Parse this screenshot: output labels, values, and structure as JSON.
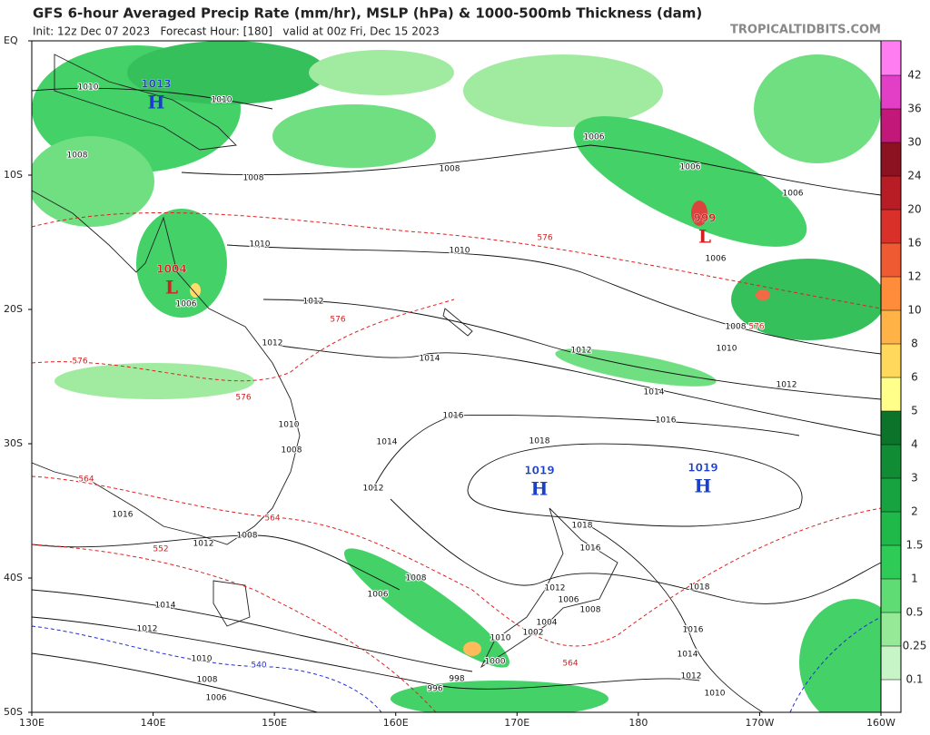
{
  "header": {
    "title": "GFS 6-hour Averaged Precip Rate (mm/hr), MSLP (hPa) & 1000-500mb Thickness (dam)",
    "subtitle": "Init: 12z Dec 07 2023   Forecast Hour: [180]   valid at 00z Fri, Dec 15 2023",
    "site": "TROPICALTIDBITS.COM"
  },
  "axes": {
    "lat_labels": [
      "EQ",
      "10S",
      "20S",
      "30S",
      "40S",
      "50S"
    ],
    "lon_labels": [
      "130E",
      "140E",
      "150E",
      "160E",
      "170E",
      "180",
      "170W",
      "160W"
    ]
  },
  "colorbar": {
    "ticks": [
      0.1,
      0.25,
      0.5,
      1,
      1.5,
      2,
      3,
      4,
      5,
      6,
      8,
      10,
      12,
      16,
      20,
      24,
      30,
      36,
      42
    ],
    "colors": [
      "#ffffff",
      "#c8f5c8",
      "#96e996",
      "#5fdc73",
      "#2ecc57",
      "#1fb94a",
      "#17a33f",
      "#108c35",
      "#0b742a",
      "#ffff8a",
      "#ffd85c",
      "#ffb347",
      "#ff8c3a",
      "#f05a32",
      "#d9302a",
      "#b81c25",
      "#8c1222",
      "#c2187a",
      "#e23fc6",
      "#ff7df0"
    ]
  },
  "pressure_centers": [
    {
      "value": 1013,
      "symbol": "H"
    },
    {
      "value": 999,
      "symbol": "L"
    },
    {
      "value": 1004,
      "symbol": "L"
    },
    {
      "value": 1019,
      "symbol": "H"
    },
    {
      "value": 1019,
      "symbol": "H"
    }
  ],
  "isobar_labels": [
    1010,
    1010,
    1008,
    1008,
    1008,
    1006,
    1006,
    1006,
    1010,
    1010,
    1006,
    1006,
    1008,
    1012,
    1012,
    1010,
    1012,
    1014,
    1014,
    1012,
    1016,
    1016,
    1018,
    1010,
    1008,
    1014,
    1012,
    1016,
    1008,
    1012,
    1018,
    1016,
    1008,
    1006,
    1012,
    1006,
    1008,
    1018,
    1014,
    1004,
    1002,
    1012,
    1016,
    1010,
    1000,
    1014,
    1010,
    998,
    1012,
    1008,
    996,
    1010,
    1006
  ],
  "thickness_labels": [
    576,
    576,
    576,
    576,
    576,
    564,
    564,
    552,
    564,
    540
  ]
}
